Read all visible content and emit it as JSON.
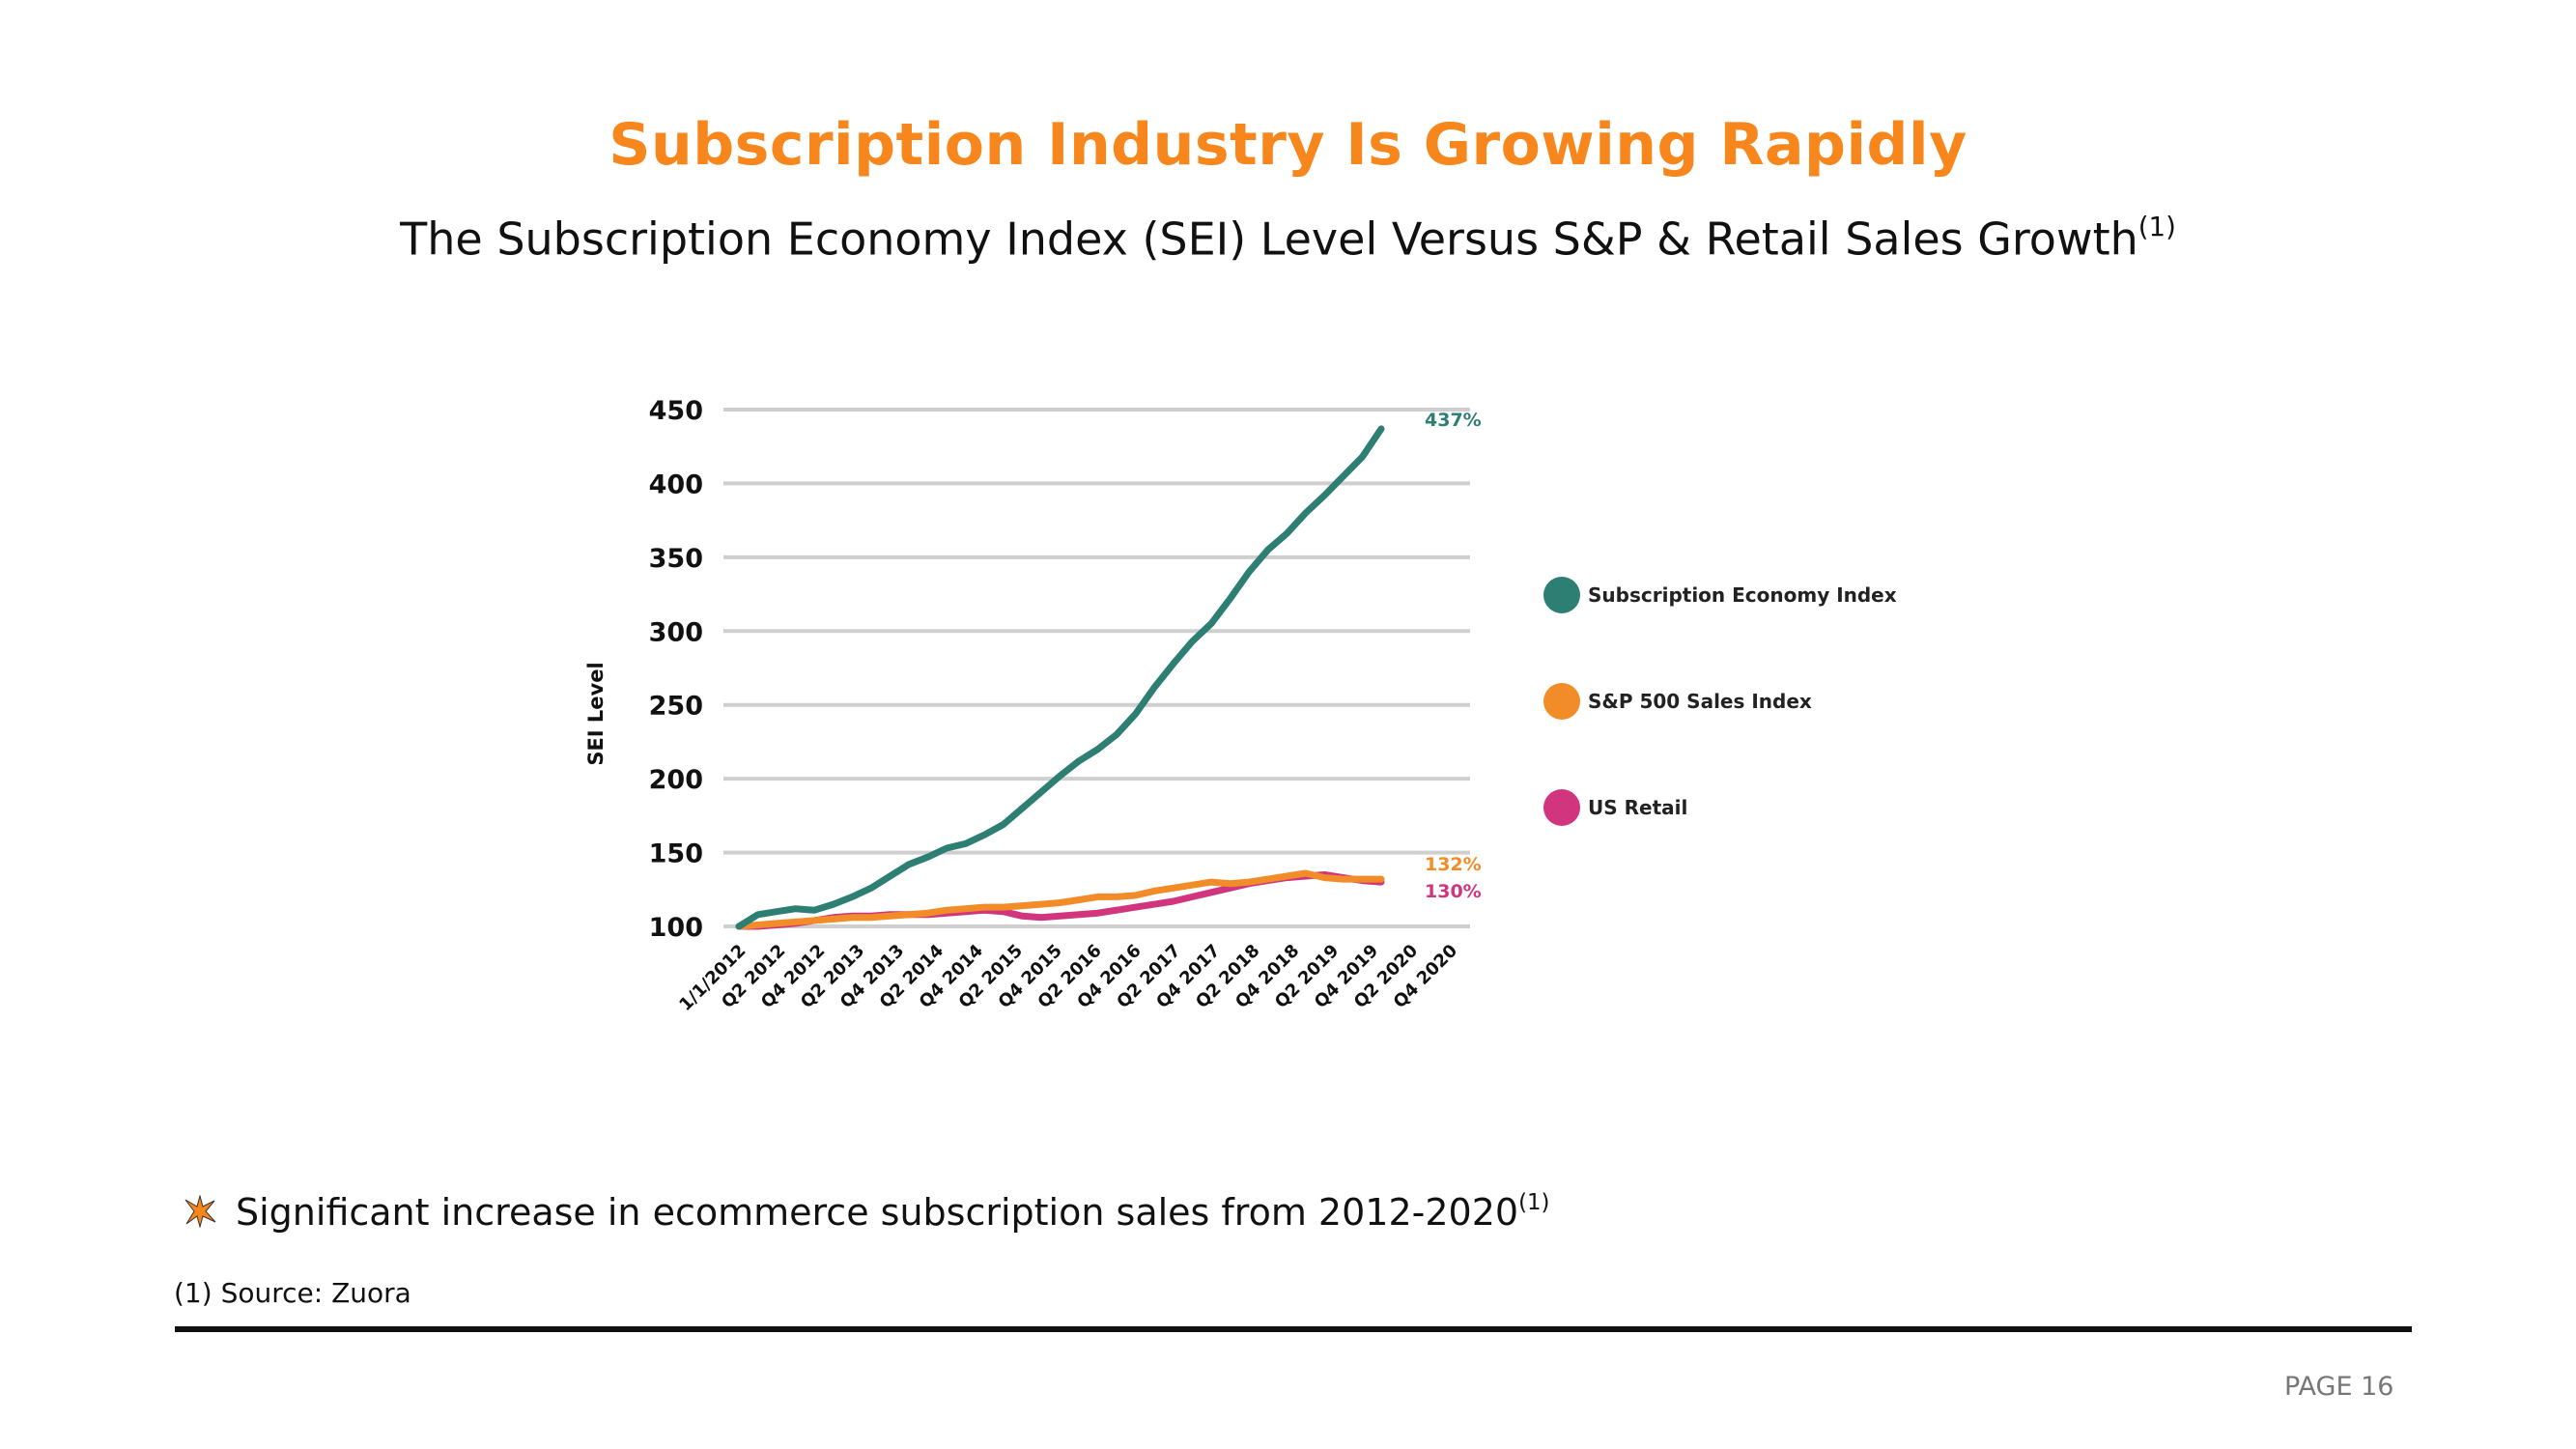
{
  "header": {
    "title": "Subscription Industry Is Growing Rapidly",
    "subtitle": "The Subscription Economy Index (SEI) Level Versus S&P & Retail Sales Growth",
    "subtitle_sup": "(1)"
  },
  "chart_data": {
    "type": "line",
    "ylabel": "SEI Level",
    "ylim": [
      100,
      450
    ],
    "yticks": [
      100,
      150,
      200,
      250,
      300,
      350,
      400,
      450
    ],
    "grid": true,
    "legend_position": "right",
    "x_tick_labels": [
      "1/1/2012",
      "Q2 2012",
      "Q4 2012",
      "Q2 2013",
      "Q4 2013",
      "Q2 2014",
      "Q4 2014",
      "Q2 2015",
      "Q4 2015",
      "Q2 2016",
      "Q4 2016",
      "Q2 2017",
      "Q4 2017",
      "Q2 2018",
      "Q4 2018",
      "Q2 2019",
      "Q4 2019",
      "Q2 2020",
      "Q4 2020"
    ],
    "x_step_per_point": 0.5,
    "series": [
      {
        "name": "Subscription Economy Index",
        "color": "#2e7f73",
        "end_label": "437%",
        "values": [
          100,
          108,
          110,
          112,
          111,
          115,
          120,
          126,
          134,
          142,
          147,
          153,
          156,
          162,
          169,
          180,
          191,
          202,
          212,
          220,
          230,
          244,
          262,
          278,
          293,
          305,
          322,
          340,
          355,
          366,
          380,
          392,
          405,
          418,
          437
        ]
      },
      {
        "name": "S&P 500 Sales Index",
        "color": "#f28c28",
        "end_label": "132%",
        "values": [
          100,
          101,
          102,
          103,
          104,
          105,
          106,
          106,
          107,
          108,
          109,
          111,
          112,
          113,
          113,
          114,
          115,
          116,
          118,
          120,
          120,
          121,
          124,
          126,
          128,
          130,
          129,
          130,
          132,
          134,
          136,
          133,
          132,
          132,
          132
        ]
      },
      {
        "name": "US Retail",
        "color": "#d1357e",
        "end_label": "130%",
        "values": [
          100,
          100,
          101,
          102,
          104,
          106,
          107,
          107,
          108,
          108,
          108,
          109,
          110,
          111,
          110,
          107,
          106,
          107,
          108,
          109,
          111,
          113,
          115,
          117,
          120,
          123,
          126,
          129,
          131,
          133,
          134,
          135,
          133,
          131,
          130
        ]
      }
    ]
  },
  "bullet": {
    "text": "Significant increase in ecommerce subscription sales from 2012-2020",
    "sup": "(1)",
    "icon": "star-burst-icon",
    "icon_color": "#f7871d"
  },
  "footnote": "(1) Source: Zuora",
  "page_label": "PAGE 16"
}
